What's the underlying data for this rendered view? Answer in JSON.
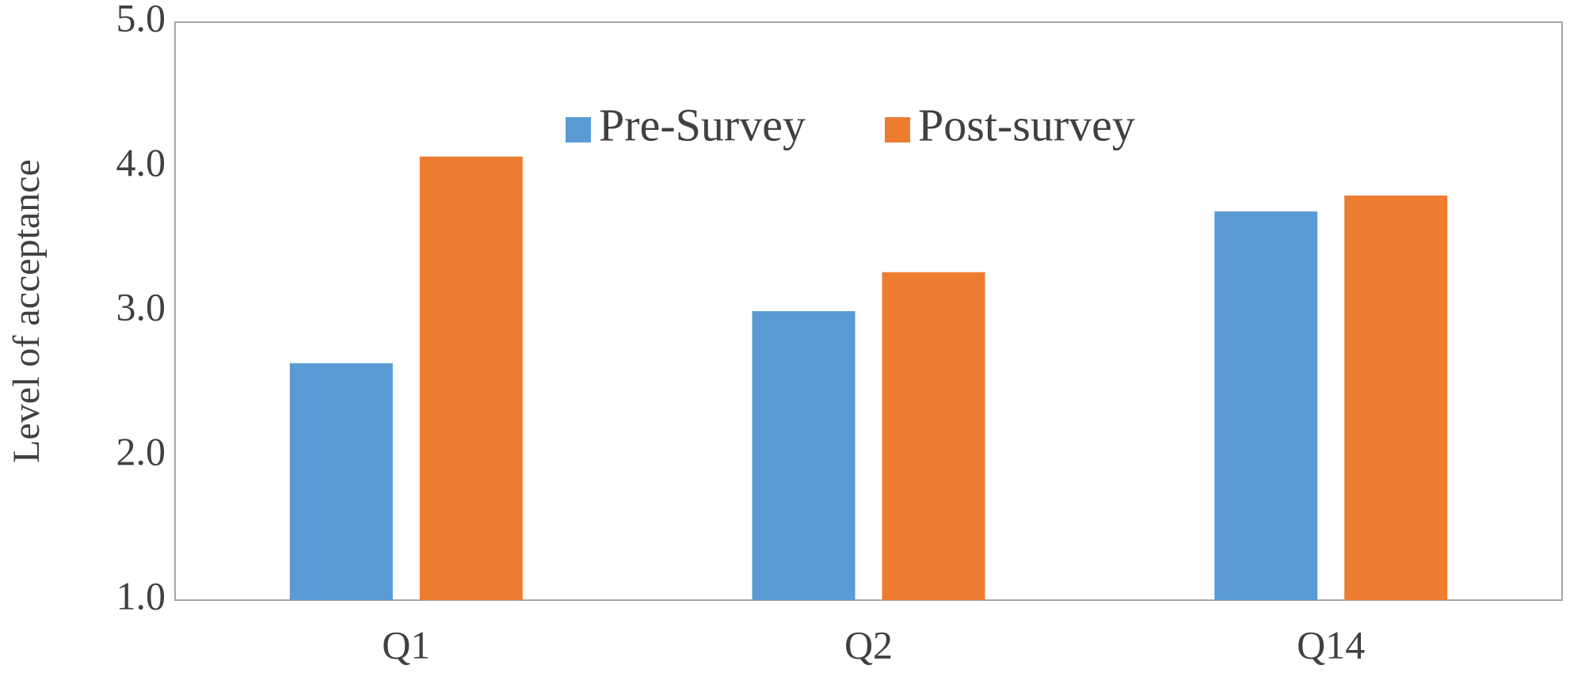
{
  "chart_data": {
    "type": "bar",
    "y_label": "Level of acceptance",
    "categories": [
      "Q1",
      "Q2",
      "Q14"
    ],
    "series": [
      {
        "name": "Pre-Survey",
        "color": "#5b9bd5",
        "values": [
          2.64,
          3.0,
          3.69
        ]
      },
      {
        "name": "Post-survey",
        "color": "#ed7d31",
        "values": [
          4.07,
          3.27,
          3.8
        ]
      }
    ],
    "ylim": [
      1,
      5
    ],
    "yticks": [
      {
        "value": 1,
        "label": "1.0"
      },
      {
        "value": 2,
        "label": "2.0"
      },
      {
        "value": 3,
        "label": "3.0"
      },
      {
        "value": 4,
        "label": "4.0"
      },
      {
        "value": 5,
        "label": "5.0"
      }
    ],
    "grid": false,
    "legend": "top"
  }
}
